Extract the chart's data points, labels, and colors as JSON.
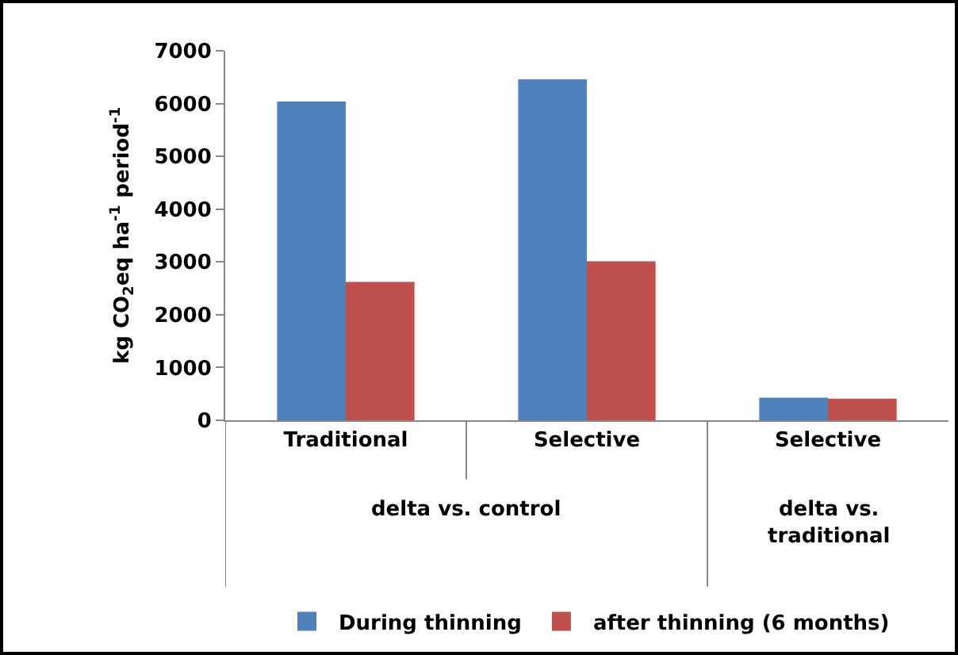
{
  "chart_data": {
    "type": "bar",
    "ylabel": "kg CO$_{2}$eq ha$^{-1}$ period$^{-1}$",
    "categories": [
      "Traditional",
      "Selective",
      "Selective"
    ],
    "series": [
      {
        "name": "During thinning",
        "color": "#4f81bd",
        "values": [
          6040,
          6460,
          430
        ]
      },
      {
        "name": "after thinning (6 months)",
        "color": "#c0504d",
        "values": [
          2620,
          3010,
          410
        ]
      }
    ],
    "annotations": [
      "delta vs. control",
      "delta vs. traditional"
    ],
    "ylim": [
      0,
      7000
    ],
    "yticks": [
      0,
      1000,
      2000,
      3000,
      4000,
      5000,
      6000,
      7000
    ],
    "grid": false,
    "legend": "bottom"
  }
}
